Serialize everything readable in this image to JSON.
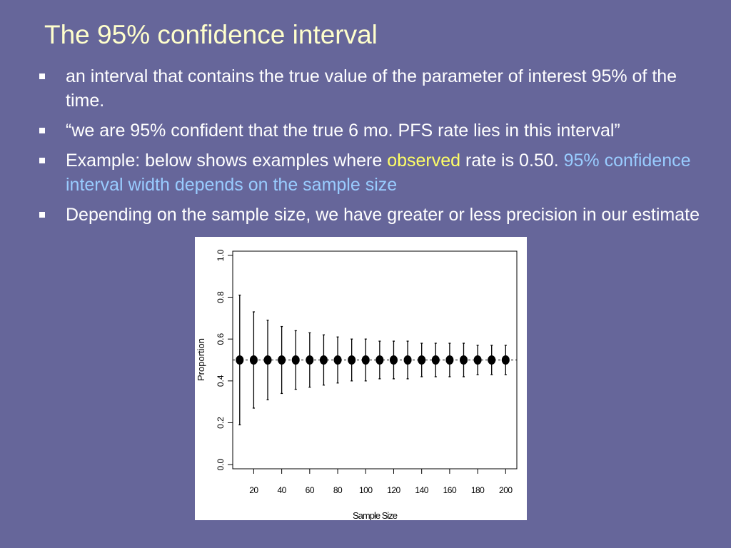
{
  "slide": {
    "title": "The 95% confidence interval",
    "bullets": [
      {
        "text": "an interval that contains the true value of the parameter of interest 95% of the time."
      },
      {
        "text": "“we are 95% confident that the true 6 mo. PFS rate lies in this interval”"
      },
      {
        "parts": [
          "Example:  below shows examples where ",
          "observed",
          " rate is 0.50.  ",
          "95% confidence interval width depends on the sample size"
        ]
      },
      {
        "text": "Depending on the sample size, we have greater or less precision in our estimate"
      }
    ]
  },
  "colors": {
    "background": "#66669a",
    "title": "#ffffcc",
    "highlight_yellow": "#ffff66",
    "highlight_blue": "#99ccff"
  },
  "chart_data": {
    "type": "scatter",
    "xlabel": "Sample Size",
    "ylabel": "Proportion",
    "xlim": [
      5,
      208
    ],
    "ylim": [
      -0.02,
      1.02
    ],
    "x_ticks": [
      20,
      40,
      60,
      80,
      100,
      120,
      140,
      160,
      180,
      200
    ],
    "y_ticks": [
      "0.0",
      "0.2",
      "0.4",
      "0.6",
      "0.8",
      "1.0"
    ],
    "reference_line": 0.5,
    "grid": false,
    "points": [
      {
        "n": 10,
        "estimate": 0.5,
        "lower": 0.19,
        "upper": 0.81
      },
      {
        "n": 20,
        "estimate": 0.5,
        "lower": 0.27,
        "upper": 0.73
      },
      {
        "n": 30,
        "estimate": 0.5,
        "lower": 0.31,
        "upper": 0.69
      },
      {
        "n": 40,
        "estimate": 0.5,
        "lower": 0.34,
        "upper": 0.66
      },
      {
        "n": 50,
        "estimate": 0.5,
        "lower": 0.36,
        "upper": 0.64
      },
      {
        "n": 60,
        "estimate": 0.5,
        "lower": 0.37,
        "upper": 0.63
      },
      {
        "n": 70,
        "estimate": 0.5,
        "lower": 0.38,
        "upper": 0.62
      },
      {
        "n": 80,
        "estimate": 0.5,
        "lower": 0.39,
        "upper": 0.61
      },
      {
        "n": 90,
        "estimate": 0.5,
        "lower": 0.4,
        "upper": 0.6
      },
      {
        "n": 100,
        "estimate": 0.5,
        "lower": 0.4,
        "upper": 0.6
      },
      {
        "n": 110,
        "estimate": 0.5,
        "lower": 0.41,
        "upper": 0.59
      },
      {
        "n": 120,
        "estimate": 0.5,
        "lower": 0.41,
        "upper": 0.59
      },
      {
        "n": 130,
        "estimate": 0.5,
        "lower": 0.41,
        "upper": 0.59
      },
      {
        "n": 140,
        "estimate": 0.5,
        "lower": 0.42,
        "upper": 0.58
      },
      {
        "n": 150,
        "estimate": 0.5,
        "lower": 0.42,
        "upper": 0.58
      },
      {
        "n": 160,
        "estimate": 0.5,
        "lower": 0.42,
        "upper": 0.58
      },
      {
        "n": 170,
        "estimate": 0.5,
        "lower": 0.42,
        "upper": 0.58
      },
      {
        "n": 180,
        "estimate": 0.5,
        "lower": 0.43,
        "upper": 0.57
      },
      {
        "n": 190,
        "estimate": 0.5,
        "lower": 0.43,
        "upper": 0.57
      },
      {
        "n": 200,
        "estimate": 0.5,
        "lower": 0.43,
        "upper": 0.57
      }
    ]
  }
}
